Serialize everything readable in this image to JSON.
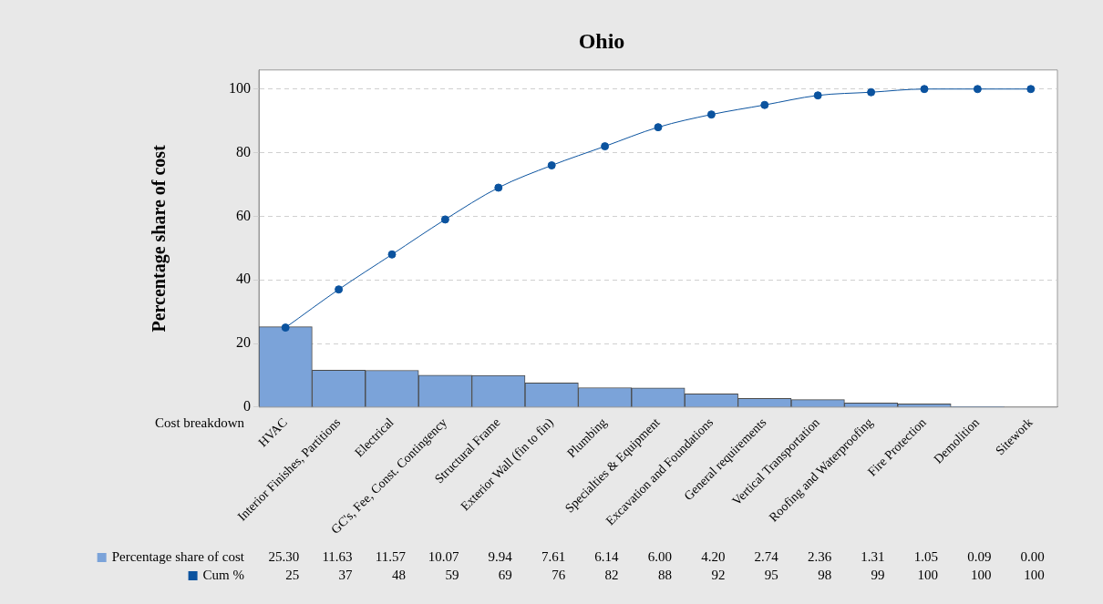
{
  "chart_data": {
    "type": "bar",
    "title": "Ohio",
    "xlabel": "Cost breakdown",
    "ylabel": "Percentage share of cost",
    "categories": [
      "HVAC",
      "Interior Finishes, Partitions",
      "Electrical",
      "GC's, Fee, Const. Contingency",
      "Structural Frame",
      "Exterior Wall (fin to fin)",
      "Plumbing",
      "Specialties & Equipment",
      "Excavation and Foundations",
      "General requirements",
      "Vertical Transportation",
      "Roofing and Waterproofing",
      "Fire Protection",
      "Demolition",
      "Sitework"
    ],
    "series": [
      {
        "name": "Percentage share of cost",
        "color": "#7ba3d9",
        "values": [
          25.3,
          11.63,
          11.57,
          10.07,
          9.94,
          7.61,
          6.14,
          6.0,
          4.2,
          2.74,
          2.36,
          1.31,
          1.05,
          0.09,
          0.0
        ],
        "value_labels": [
          "25.30",
          "11.63",
          "11.57",
          "10.07",
          "9.94",
          "7.61",
          "6.14",
          "6.00",
          "4.20",
          "2.74",
          "2.36",
          "1.31",
          "1.05",
          "0.09",
          "0.00"
        ]
      },
      {
        "name": "Cum %",
        "type": "line",
        "color": "#0b539f",
        "marker": "circle",
        "values": [
          25,
          37,
          48,
          59,
          69,
          76,
          82,
          88,
          92,
          95,
          98,
          99,
          100,
          100,
          100
        ],
        "value_labels": [
          "25",
          "37",
          "48",
          "59",
          "69",
          "76",
          "82",
          "88",
          "92",
          "95",
          "98",
          "99",
          "100",
          "100",
          "100"
        ]
      }
    ],
    "ylim": [
      0,
      106
    ],
    "yticks": [
      0,
      20,
      40,
      60,
      80,
      100
    ],
    "grid": "y",
    "legend": "bottom left"
  }
}
